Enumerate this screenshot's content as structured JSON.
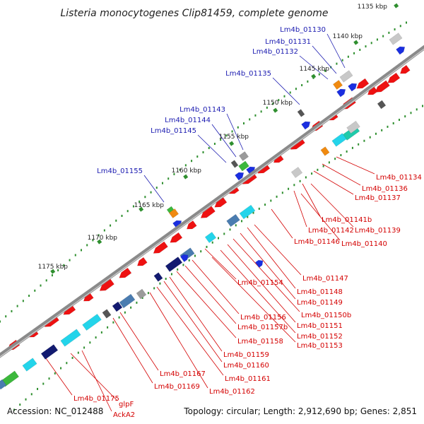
{
  "header": {
    "title": "Listeria monocytogenes Clip81459, complete genome"
  },
  "footer": {
    "accession": "Accession: NC_012488",
    "summary": "Topology: circular; Length: 2,912,690 bp; Genes: 2,851"
  },
  "colors": {
    "background": "#ffffff",
    "backbone": "#8a8a8a",
    "tick_dots": "#2f8f2f",
    "label_above": "#1a1ab0",
    "label_below": "#d40000",
    "feature_red": "#ee1111",
    "feature_blue": "#1a2ee0",
    "feature_navy": "#121a70",
    "feature_cyan": "#23d4ea",
    "feature_teal": "#1fcaaa",
    "feature_steel": "#4a7cb0",
    "feature_gray": "#9b9b9b",
    "feature_lightgray": "#c8c8c8",
    "feature_darkgray": "#555555",
    "feature_green": "#3cb83c",
    "feature_orange": "#f08a10"
  },
  "scale": {
    "unit": "kbp",
    "ticks": [
      {
        "label": "1135 kbp"
      },
      {
        "label": "1140 kbp"
      },
      {
        "label": "1145 kbp"
      },
      {
        "label": "1150 kbp"
      },
      {
        "label": "1155 kbp"
      },
      {
        "label": "1160 kbp"
      },
      {
        "label": "1165 kbp"
      },
      {
        "label": "1170 kbp"
      },
      {
        "label": "1175 kbp"
      }
    ]
  },
  "labels_above": [
    "Lm4b_01130",
    "Lm4b_01131",
    "Lm4b_01132",
    "Lm4b_01135",
    "Lm4b_01143",
    "Lm4b_01144",
    "Lm4b_01145",
    "Lm4b_01155"
  ],
  "labels_below": [
    "Lm4b_01134",
    "Lm4b_01136",
    "Lm4b_01137",
    "Lm4b_01141b",
    "Lm4b_01142",
    "Lm4b_01139",
    "Lm4b_01146",
    "Lm4b_01140",
    "Lm4b_01147",
    "Lm4b_01154",
    "Lm4b_01148",
    "Lm4b_01149",
    "Lm4b_01150b",
    "Lm4b_01156",
    "Lm4b_01151",
    "Lm4b_01157b",
    "Lm4b_01152",
    "Lm4b_01158",
    "Lm4b_01153",
    "Lm4b_01159",
    "Lm4b_01160",
    "Lm4b_01167",
    "Lm4b_01161",
    "Lm4b_01169",
    "Lm4b_01162",
    "Lm4b_01175",
    "glpF",
    "AckA2"
  ]
}
